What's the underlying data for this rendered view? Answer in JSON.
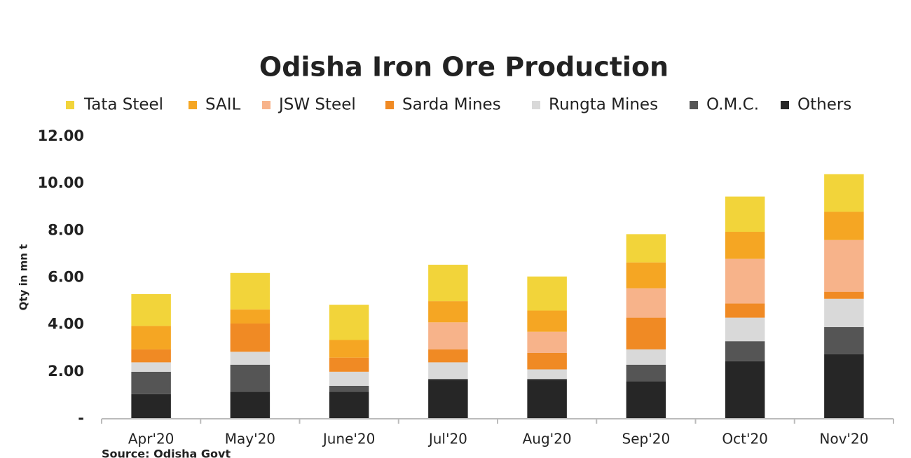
{
  "chart_data": {
    "type": "stacked_bar",
    "title": "Odisha Iron Ore Production",
    "y_label": "Qty in mn t",
    "source": "Source: Odisha Govt",
    "categories": [
      "Apr'20",
      "May'20",
      "June'20",
      "Jul'20",
      "Aug'20",
      "Sep'20",
      "Oct'20",
      "Nov'20"
    ],
    "series": [
      {
        "name": "Tata Steel",
        "color": "#f2d43a",
        "values": [
          1.35,
          1.55,
          1.5,
          1.55,
          1.45,
          1.2,
          1.5,
          1.6
        ]
      },
      {
        "name": "SAIL",
        "color": "#f5a623",
        "values": [
          1.0,
          0.6,
          0.75,
          0.9,
          0.9,
          1.1,
          1.15,
          1.2
        ]
      },
      {
        "name": "JSW Steel",
        "color": "#f7b38a",
        "values": [
          0,
          0,
          0,
          1.15,
          0.9,
          1.25,
          1.9,
          2.2
        ]
      },
      {
        "name": "Sarda Mines",
        "color": "#f08a24",
        "values": [
          0.55,
          1.2,
          0.6,
          0.55,
          0.7,
          1.35,
          0.6,
          0.3
        ]
      },
      {
        "name": "Rungta Mines",
        "color": "#d9d9d9",
        "values": [
          0.4,
          0.55,
          0.6,
          0.7,
          0.4,
          0.65,
          1.0,
          1.2
        ]
      },
      {
        "name": "O.M.C.",
        "color": "#555555",
        "values": [
          0.95,
          1.15,
          0.25,
          0.05,
          0.05,
          0.7,
          0.85,
          1.15
        ]
      },
      {
        "name": "Others",
        "color": "#262626",
        "values": [
          1.05,
          1.15,
          1.15,
          1.65,
          1.65,
          1.6,
          2.45,
          2.75
        ]
      }
    ],
    "ylim": [
      0,
      12
    ],
    "yticks": [
      {
        "value": 0,
        "label": "-"
      },
      {
        "value": 2,
        "label": "2.00"
      },
      {
        "value": 4,
        "label": "4.00"
      },
      {
        "value": 6,
        "label": "6.00"
      },
      {
        "value": 8,
        "label": "8.00"
      },
      {
        "value": 10,
        "label": "10.00"
      },
      {
        "value": 12,
        "label": "12.00"
      }
    ],
    "legend": "top"
  }
}
